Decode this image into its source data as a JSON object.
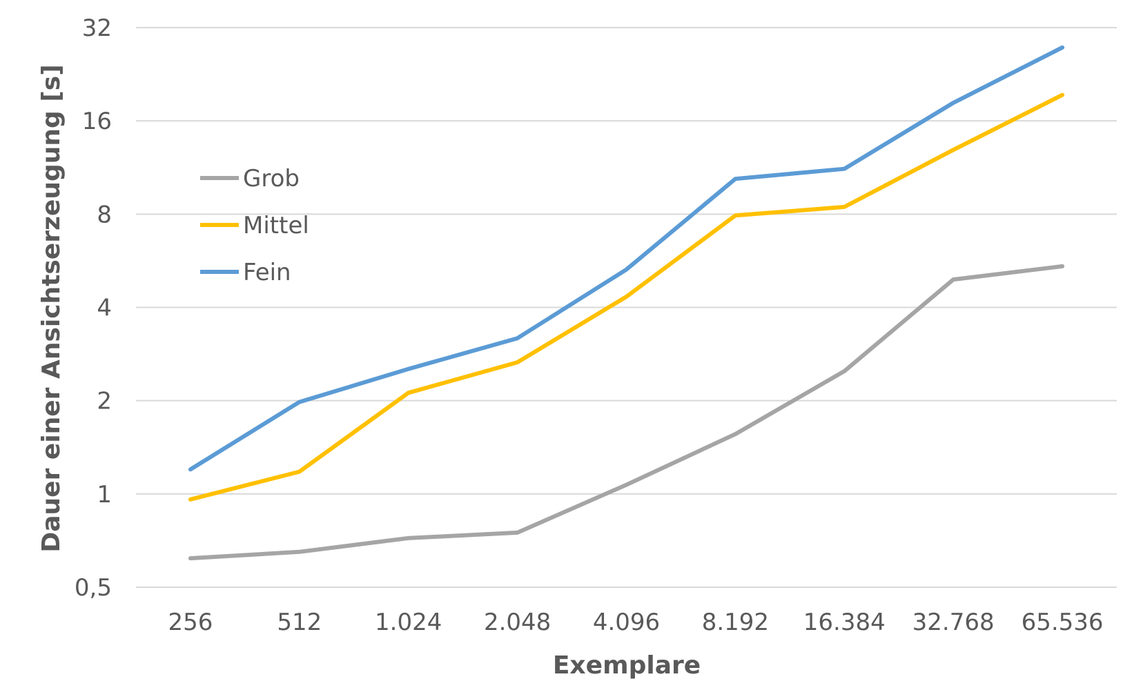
{
  "chart_data": {
    "type": "line",
    "xlabel": "Exemplare",
    "ylabel": "Dauer einer Ansichtserzeugung [s]",
    "categories": [
      "256",
      "512",
      "1.024",
      "2.048",
      "4.096",
      "8.192",
      "16.384",
      "32.768",
      "65.536"
    ],
    "y_scale": "log2",
    "ylim": [
      0.5,
      32
    ],
    "yticks": [
      {
        "value": 0.5,
        "label": "0,5"
      },
      {
        "value": 1,
        "label": "1"
      },
      {
        "value": 2,
        "label": "2"
      },
      {
        "value": 4,
        "label": "4"
      },
      {
        "value": 8,
        "label": "8"
      },
      {
        "value": 16,
        "label": "16"
      },
      {
        "value": 32,
        "label": "32"
      }
    ],
    "grid": true,
    "legend_position": "upper-left",
    "series": [
      {
        "name": "Grob",
        "color": "#A5A5A5",
        "values": [
          0.62,
          0.65,
          0.72,
          0.75,
          1.07,
          1.56,
          2.49,
          4.92,
          5.43
        ]
      },
      {
        "name": "Mittel",
        "color": "#FFC000",
        "values": [
          0.96,
          1.18,
          2.12,
          2.66,
          4.33,
          7.92,
          8.44,
          12.9,
          19.4
        ]
      },
      {
        "name": "Fein",
        "color": "#5B9BD5",
        "values": [
          1.2,
          1.98,
          2.53,
          3.18,
          5.3,
          10.4,
          11.2,
          18.3,
          27.6
        ]
      }
    ]
  }
}
